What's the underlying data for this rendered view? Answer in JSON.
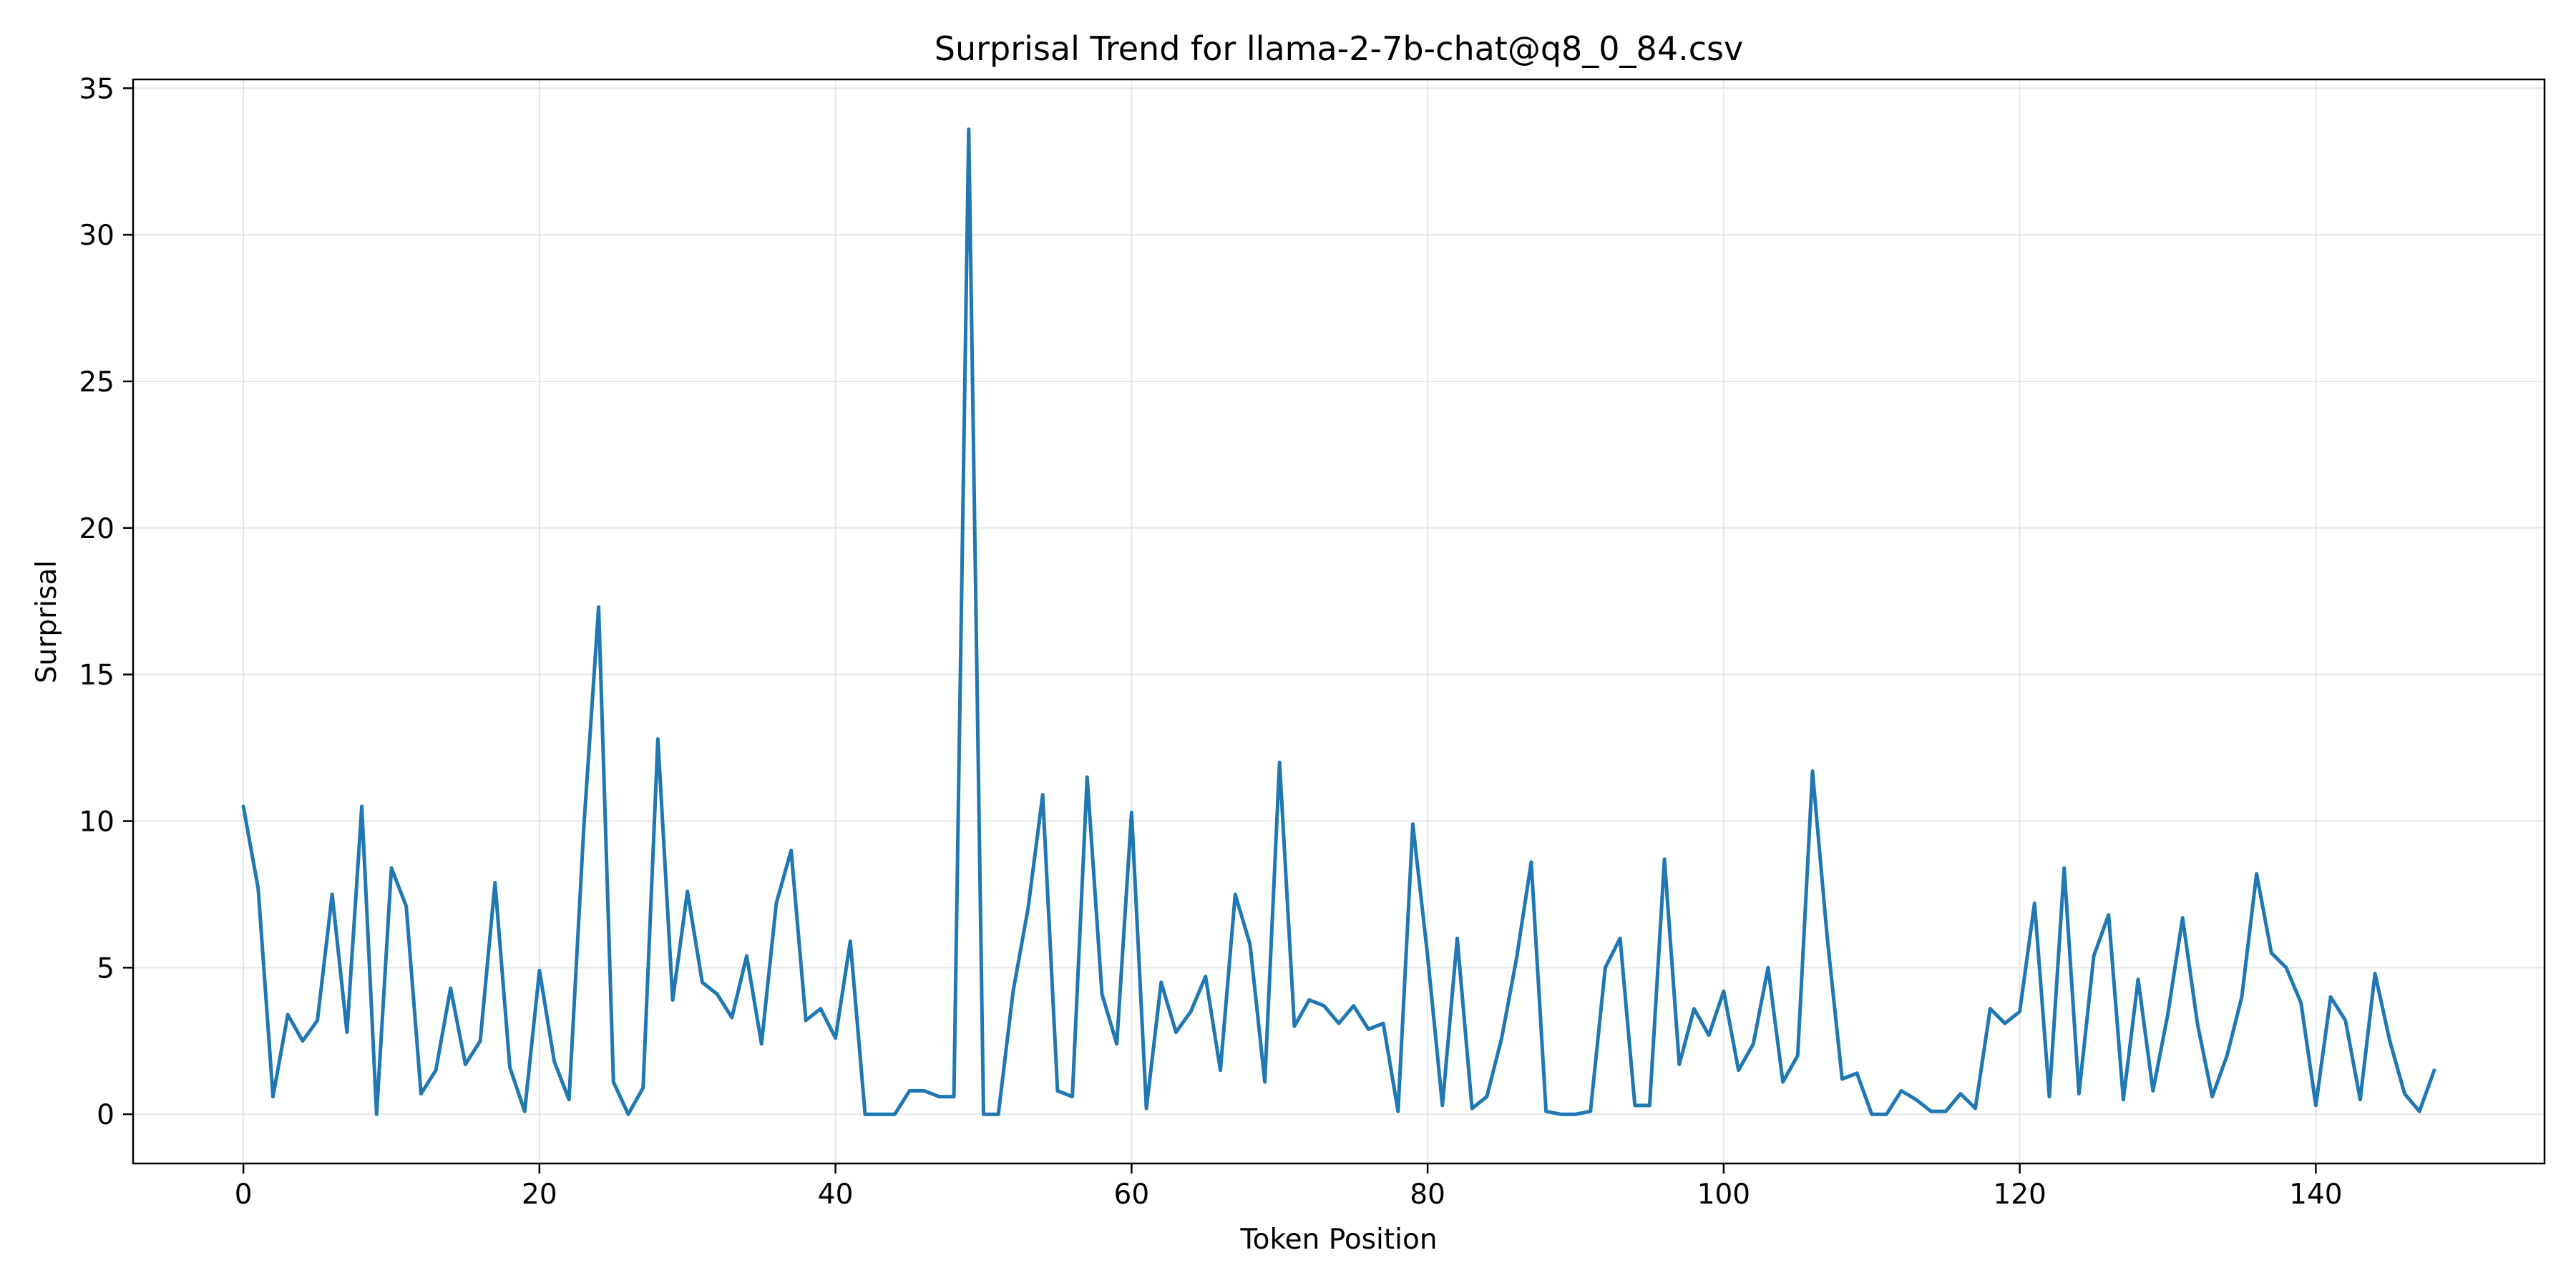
{
  "chart_data": {
    "type": "line",
    "title": "Surprisal Trend for llama-2-7b-chat@q8_0_84.csv",
    "xlabel": "Token Position",
    "ylabel": "Surprisal",
    "xlim": [
      -7.45,
      155.45
    ],
    "ylim": [
      -1.68,
      35.3
    ],
    "xticks": [
      0,
      20,
      40,
      60,
      80,
      100,
      120,
      140
    ],
    "yticks": [
      0,
      5,
      10,
      15,
      20,
      25,
      30,
      35
    ],
    "xtick_labels": [
      "0",
      "20",
      "40",
      "60",
      "80",
      "100",
      "120",
      "140"
    ],
    "ytick_labels": [
      "0",
      "5",
      "10",
      "15",
      "20",
      "25",
      "30",
      "35"
    ],
    "grid": true,
    "line_color": "#1f77b4",
    "series": [
      {
        "x": [
          0,
          1,
          2,
          3,
          4,
          5,
          6,
          7,
          8,
          9,
          10,
          11,
          12,
          13,
          14,
          15,
          16,
          17,
          18,
          19,
          20,
          21,
          22,
          23,
          24,
          25,
          26,
          27,
          28,
          29,
          30,
          31,
          32,
          33,
          34,
          35,
          36,
          37,
          38,
          39,
          40,
          41,
          42,
          43,
          44,
          45,
          46,
          47,
          48,
          49,
          50,
          51,
          52,
          53,
          54,
          55,
          56,
          57,
          58,
          59,
          60,
          61,
          62,
          63,
          64,
          65,
          66,
          67,
          68,
          69,
          70,
          71,
          72,
          73,
          74,
          75,
          76,
          77,
          78,
          79,
          80,
          81,
          82,
          83,
          84,
          85,
          86,
          87,
          88,
          89,
          90,
          91,
          92,
          93,
          94,
          95,
          96,
          97,
          98,
          99,
          100,
          101,
          102,
          103,
          104,
          105,
          106,
          107,
          108,
          109,
          110,
          111,
          112,
          113,
          114,
          115,
          116,
          117,
          118,
          119,
          120,
          121,
          122,
          123,
          124,
          125,
          126,
          127,
          128,
          129,
          130,
          131,
          132,
          133,
          134,
          135,
          136,
          137,
          138,
          139,
          140,
          141,
          142,
          143,
          144,
          145,
          146,
          147,
          148
        ],
        "values": [
          10.5,
          7.7,
          0.6,
          3.4,
          2.5,
          3.2,
          7.5,
          2.8,
          10.5,
          0.0,
          8.4,
          7.1,
          0.7,
          1.5,
          4.3,
          1.7,
          2.5,
          7.9,
          1.6,
          0.1,
          4.9,
          1.8,
          0.5,
          9.8,
          17.3,
          1.1,
          0.0,
          0.9,
          12.8,
          3.9,
          7.6,
          4.5,
          4.1,
          3.3,
          5.4,
          2.4,
          7.2,
          9.0,
          3.2,
          3.6,
          2.6,
          5.9,
          0.0,
          0.0,
          0.0,
          0.8,
          0.8,
          0.6,
          0.6,
          33.6,
          0.0,
          0.0,
          4.2,
          7.0,
          10.9,
          0.8,
          0.6,
          11.5,
          4.1,
          2.4,
          10.3,
          0.2,
          4.5,
          2.8,
          3.5,
          4.7,
          1.5,
          7.5,
          5.8,
          1.1,
          12.0,
          3.0,
          3.9,
          3.7,
          3.1,
          3.7,
          2.9,
          3.1,
          0.1,
          9.9,
          5.4,
          0.3,
          6.0,
          0.2,
          0.6,
          2.6,
          5.3,
          8.6,
          0.1,
          0.0,
          0.0,
          0.1,
          5.0,
          6.0,
          0.3,
          0.3,
          8.7,
          1.7,
          3.6,
          2.7,
          4.2,
          1.5,
          2.4,
          5.0,
          1.1,
          2.0,
          11.7,
          6.0,
          1.2,
          1.4,
          0.0,
          0.0,
          0.8,
          0.5,
          0.1,
          0.1,
          0.7,
          0.2,
          3.6,
          3.1,
          3.5,
          7.2,
          0.6,
          8.4,
          0.7,
          5.4,
          6.8,
          0.5,
          4.6,
          0.8,
          3.4,
          6.7,
          3.1,
          0.6,
          2.0,
          4.0,
          8.2,
          5.5,
          5.0,
          3.8,
          0.3,
          4.0,
          3.2,
          0.5,
          4.8,
          2.5,
          0.7,
          0.1,
          1.5
        ]
      }
    ]
  }
}
